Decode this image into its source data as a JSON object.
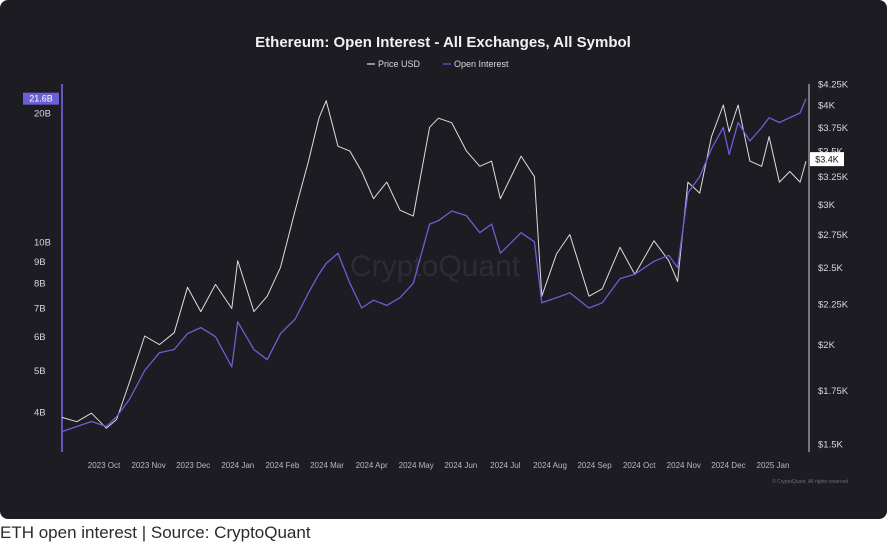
{
  "caption": "ETH open interest | Source: CryptoQuant",
  "chart_data": {
    "type": "line",
    "title": "Ethereum: Open Interest - All Exchanges, All Symbol",
    "watermark": "CryptoQuant",
    "credit": "© CryptoQuant. All rights reserved",
    "legend_placement": "top-center",
    "grid": false,
    "colors": {
      "price": "#dedede",
      "open_interest": "#6b5fd6",
      "background": "#1c1c22"
    },
    "x_tick_labels": [
      "2023 Oct",
      "2023 Nov",
      "2023 Dec",
      "2024 Jan",
      "2024 Feb",
      "2024 Mar",
      "2024 Apr",
      "2024 May",
      "2024 Jun",
      "2024 Jul",
      "2024 Aug",
      "2024 Sep",
      "2024 Oct",
      "2024 Nov",
      "2024 Dec",
      "2025 Jan"
    ],
    "left_axis": {
      "scale": "log",
      "range": [
        3.5,
        22
      ],
      "ticks": [
        {
          "value": 4,
          "label": "4B"
        },
        {
          "value": 5,
          "label": "5B"
        },
        {
          "value": 6,
          "label": "6B"
        },
        {
          "value": 7,
          "label": "7B"
        },
        {
          "value": 8,
          "label": "8B"
        },
        {
          "value": 9,
          "label": "9B"
        },
        {
          "value": 10,
          "label": "10B"
        },
        {
          "value": 20,
          "label": "20B"
        }
      ],
      "current_badge": {
        "value": 21.6,
        "label": "21.6B"
      }
    },
    "right_axis": {
      "scale": "log",
      "range": [
        1500,
        4250
      ],
      "ticks": [
        {
          "value": 1500,
          "label": "$1.5K"
        },
        {
          "value": 1750,
          "label": "$1.75K"
        },
        {
          "value": 2000,
          "label": "$2K"
        },
        {
          "value": 2250,
          "label": "$2.25K"
        },
        {
          "value": 2500,
          "label": "$2.5K"
        },
        {
          "value": 2750,
          "label": "$2.75K"
        },
        {
          "value": 3000,
          "label": "$3K"
        },
        {
          "value": 3250,
          "label": "$3.25K"
        },
        {
          "value": 3500,
          "label": "$3.5K"
        },
        {
          "value": 3750,
          "label": "$3.75K"
        },
        {
          "value": 4000,
          "label": "$4K"
        },
        {
          "value": 4250,
          "label": "$4.25K"
        }
      ],
      "current_badge": {
        "value": 3400,
        "label": "$3.4K"
      }
    },
    "series": [
      {
        "name": "Price USD",
        "axis": "right",
        "x": [
          "2023-09-15",
          "2023-09-25",
          "2023-10-05",
          "2023-10-15",
          "2023-10-22",
          "2023-10-31",
          "2023-11-10",
          "2023-11-20",
          "2023-11-30",
          "2023-12-09",
          "2023-12-18",
          "2023-12-28",
          "2024-01-08",
          "2024-01-12",
          "2024-01-23",
          "2024-02-01",
          "2024-02-10",
          "2024-02-20",
          "2024-02-29",
          "2024-03-07",
          "2024-03-12",
          "2024-03-20",
          "2024-03-28",
          "2024-04-05",
          "2024-04-13",
          "2024-04-22",
          "2024-05-01",
          "2024-05-10",
          "2024-05-21",
          "2024-05-27",
          "2024-06-05",
          "2024-06-15",
          "2024-06-24",
          "2024-07-02",
          "2024-07-08",
          "2024-07-22",
          "2024-07-31",
          "2024-08-05",
          "2024-08-15",
          "2024-08-24",
          "2024-09-06",
          "2024-09-15",
          "2024-09-27",
          "2024-10-07",
          "2024-10-20",
          "2024-10-30",
          "2024-11-05",
          "2024-11-12",
          "2024-11-20",
          "2024-11-28",
          "2024-12-06",
          "2024-12-10",
          "2024-12-16",
          "2024-12-24",
          "2025-01-01",
          "2025-01-06",
          "2025-01-13",
          "2025-01-20",
          "2025-01-27",
          "2025-01-31"
        ],
        "values": [
          1620,
          1600,
          1640,
          1570,
          1610,
          1800,
          2050,
          2000,
          2070,
          2360,
          2200,
          2380,
          2220,
          2550,
          2200,
          2300,
          2500,
          2950,
          3400,
          3850,
          4050,
          3550,
          3500,
          3300,
          3050,
          3200,
          2950,
          2900,
          3750,
          3850,
          3800,
          3500,
          3350,
          3400,
          3050,
          3450,
          3250,
          2300,
          2600,
          2750,
          2300,
          2350,
          2650,
          2450,
          2700,
          2550,
          2400,
          3200,
          3100,
          3650,
          4000,
          3700,
          4000,
          3400,
          3350,
          3650,
          3200,
          3300,
          3200,
          3400
        ]
      },
      {
        "name": "Open Interest",
        "axis": "left",
        "x": [
          "2023-09-15",
          "2023-09-25",
          "2023-10-05",
          "2023-10-15",
          "2023-10-22",
          "2023-10-31",
          "2023-11-10",
          "2023-11-20",
          "2023-11-30",
          "2023-12-09",
          "2023-12-18",
          "2023-12-28",
          "2024-01-08",
          "2024-01-12",
          "2024-01-23",
          "2024-02-01",
          "2024-02-10",
          "2024-02-20",
          "2024-02-29",
          "2024-03-07",
          "2024-03-12",
          "2024-03-20",
          "2024-03-28",
          "2024-04-05",
          "2024-04-13",
          "2024-04-22",
          "2024-05-01",
          "2024-05-10",
          "2024-05-21",
          "2024-05-27",
          "2024-06-05",
          "2024-06-15",
          "2024-06-24",
          "2024-07-02",
          "2024-07-08",
          "2024-07-22",
          "2024-07-31",
          "2024-08-05",
          "2024-08-15",
          "2024-08-24",
          "2024-09-06",
          "2024-09-15",
          "2024-09-27",
          "2024-10-07",
          "2024-10-20",
          "2024-10-30",
          "2024-11-05",
          "2024-11-12",
          "2024-11-20",
          "2024-11-28",
          "2024-12-06",
          "2024-12-10",
          "2024-12-16",
          "2024-12-24",
          "2025-01-01",
          "2025-01-06",
          "2025-01-13",
          "2025-01-20",
          "2025-01-27",
          "2025-01-31"
        ],
        "values": [
          3.6,
          3.7,
          3.8,
          3.7,
          3.9,
          4.3,
          5.0,
          5.5,
          5.6,
          6.1,
          6.3,
          6.0,
          5.1,
          6.5,
          5.6,
          5.3,
          6.1,
          6.6,
          7.6,
          8.4,
          8.9,
          9.4,
          8.0,
          7.0,
          7.3,
          7.1,
          7.4,
          8.0,
          11.0,
          11.2,
          11.8,
          11.5,
          10.5,
          11.0,
          9.4,
          10.5,
          10.0,
          7.2,
          7.4,
          7.6,
          7.0,
          7.2,
          8.2,
          8.4,
          9.0,
          9.3,
          8.7,
          13.0,
          14.2,
          16.5,
          18.5,
          16.0,
          19.0,
          17.2,
          18.5,
          19.5,
          19.0,
          19.5,
          20.0,
          21.6
        ]
      }
    ]
  }
}
